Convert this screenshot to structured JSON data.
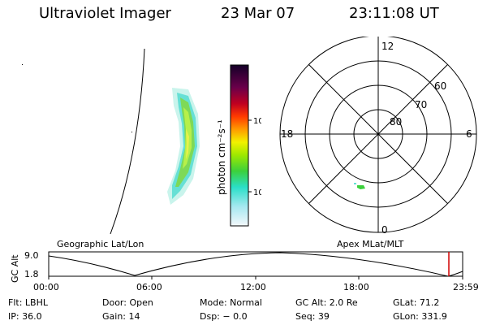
{
  "header": {
    "title": "Ultraviolet Imager",
    "date": "23 Mar 07",
    "time": "23:11:08 UT"
  },
  "colorbar": {
    "label": "photon cm⁻²s⁻¹",
    "ticks": [
      "100",
      "10"
    ]
  },
  "polar": {
    "mlt_labels": {
      "top": "12",
      "bottom": "0",
      "left": "18",
      "right": "6"
    },
    "lat_labels": [
      "60",
      "70",
      "80"
    ]
  },
  "timeline": {
    "left_title": "Geographic Lat/Lon",
    "right_title": "Apex MLat/MLT",
    "axis_label": "GC Alt",
    "y_max": "9.0",
    "y_min": "1.8",
    "x_ticks": [
      "00:00",
      "06:00",
      "12:00",
      "18:00",
      "23:59"
    ],
    "marker_color": "#d00000"
  },
  "info": {
    "col1": [
      "Flt: LBHL",
      "IP: 36.0"
    ],
    "col2": [
      "Door: Open",
      "Gain: 14"
    ],
    "col3": [
      "Mode: Normal",
      "Dsp: − 0.0"
    ],
    "col4": [
      "GC Alt: 2.0 Re",
      "Seq: 39"
    ],
    "col5": [
      "GLat: 71.2",
      "GLon: 331.9"
    ]
  }
}
